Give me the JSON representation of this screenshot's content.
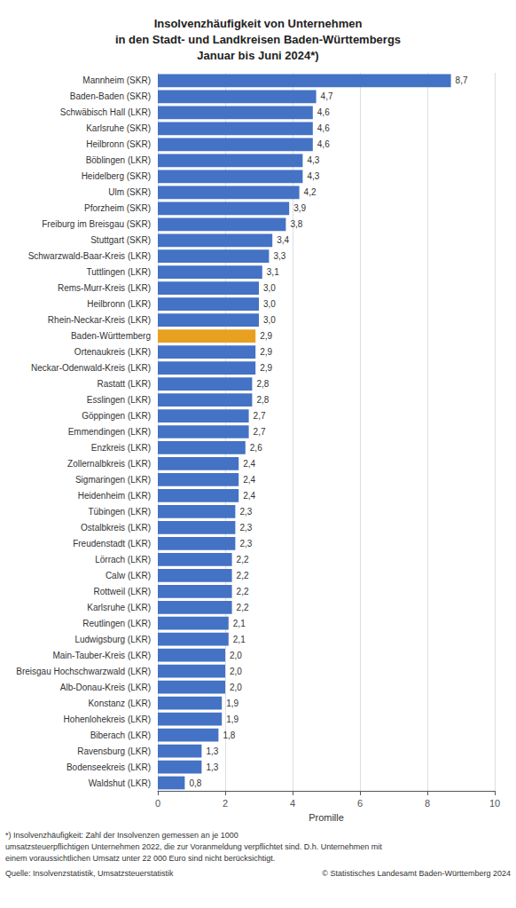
{
  "chart_data": {
    "type": "bar",
    "orientation": "horizontal",
    "title": "Insolvenzhäufigkeit von Unternehmen\nin den Stadt- und Landkreisen Baden-Württembergs\nJanuar bis Juni 2024*)",
    "categories": [
      "Waldshut (LKR)",
      "Bodenseekreis (LKR)",
      "Ravensburg (LKR)",
      "Biberach (LKR)",
      "Hohenlohekreis (LKR)",
      "Konstanz (LKR)",
      "Alb-Donau-Kreis (LKR)",
      "Breisgau Hochschwarzwald (LKR)",
      "Main-Tauber-Kreis (LKR)",
      "Ludwigsburg (LKR)",
      "Reutlingen (LKR)",
      "Karlsruhe (LKR)",
      "Rottweil (LKR)",
      "Calw (LKR)",
      "Lörrach (LKR)",
      "Freudenstadt (LKR)",
      "Ostalbkreis (LKR)",
      "Tübingen (LKR)",
      "Heidenheim (LKR)",
      "Sigmaringen (LKR)",
      "Zollernalbkreis (LKR)",
      "Enzkreis (LKR)",
      "Emmendingen (LKR)",
      "Göppingen (LKR)",
      "Esslingen (LKR)",
      "Rastatt (LKR)",
      "Neckar-Odenwald-Kreis (LKR)",
      "Ortenaukreis (LKR)",
      "Baden-Württemberg",
      "Rhein-Neckar-Kreis (LKR)",
      "Heilbronn (LKR)",
      "Rems-Murr-Kreis (LKR)",
      "Tuttlingen (LKR)",
      "Schwarzwald-Baar-Kreis (LKR)",
      "Stuttgart (SKR)",
      "Freiburg im Breisgau (SKR)",
      "Pforzheim (SKR)",
      "Ulm (SKR)",
      "Heidelberg (SKR)",
      "Böblingen (LKR)",
      "Heilbronn (SKR)",
      "Karlsruhe (SKR)",
      "Schwäbisch Hall (LKR)",
      "Baden-Baden (SKR)",
      "Mannheim (SKR)"
    ],
    "values": [
      0.8,
      1.3,
      1.3,
      1.8,
      1.9,
      1.9,
      2.0,
      2.0,
      2.0,
      2.1,
      2.1,
      2.2,
      2.2,
      2.2,
      2.2,
      2.3,
      2.3,
      2.3,
      2.4,
      2.4,
      2.4,
      2.6,
      2.7,
      2.7,
      2.8,
      2.8,
      2.9,
      2.9,
      2.9,
      3.0,
      3.0,
      3.0,
      3.1,
      3.3,
      3.4,
      3.8,
      3.9,
      4.2,
      4.3,
      4.3,
      4.6,
      4.6,
      4.6,
      4.7,
      8.7
    ],
    "value_labels": [
      "0,8",
      "1,3",
      "1,3",
      "1,8",
      "1,9",
      "1,9",
      "2,0",
      "2,0",
      "2,0",
      "2,1",
      "2,1",
      "2,2",
      "2,2",
      "2,2",
      "2,2",
      "2,3",
      "2,3",
      "2,3",
      "2,4",
      "2,4",
      "2,4",
      "2,6",
      "2,7",
      "2,7",
      "2,8",
      "2,8",
      "2,9",
      "2,9",
      "2,9",
      "3,0",
      "3,0",
      "3,0",
      "3,1",
      "3,3",
      "3,4",
      "3,8",
      "3,9",
      "4,2",
      "4,3",
      "4,3",
      "4,6",
      "4,6",
      "4,6",
      "4,7",
      "8,7"
    ],
    "data_labels": true,
    "colors": [
      "#4472C4",
      "#4472C4",
      "#4472C4",
      "#4472C4",
      "#4472C4",
      "#4472C4",
      "#4472C4",
      "#4472C4",
      "#4472C4",
      "#4472C4",
      "#4472C4",
      "#4472C4",
      "#4472C4",
      "#4472C4",
      "#4472C4",
      "#4472C4",
      "#4472C4",
      "#4472C4",
      "#4472C4",
      "#4472C4",
      "#4472C4",
      "#4472C4",
      "#4472C4",
      "#4472C4",
      "#4472C4",
      "#4472C4",
      "#4472C4",
      "#4472C4",
      "#E8A020",
      "#4472C4",
      "#4472C4",
      "#4472C4",
      "#4472C4",
      "#4472C4",
      "#4472C4",
      "#4472C4",
      "#4472C4",
      "#4472C4",
      "#4472C4",
      "#4472C4",
      "#4472C4",
      "#4472C4",
      "#4472C4",
      "#4472C4",
      "#4472C4"
    ],
    "xlabel": "Promille",
    "xlim": [
      0,
      10
    ],
    "xticks": [
      0,
      2,
      4,
      6,
      8,
      10
    ],
    "grid": true,
    "annotations": [
      "*) Insolvenzhäufigkeit: Zahl der Insolvenzen gemessen an je 1000",
      "umsatzsteuerpflichtigen Unternehmen 2022, die zur Voranmeldung verpflichtet sind. D.h. Unternehmen mit",
      "einem voraussichtlichen Umsatz unter 22 000 Euro sind nicht berücksichtigt.",
      "Quelle: Insolvenzstatistik, Umsatzsteuerstatistik",
      "© Statistisches Landesamt Baden-Württemberg 2024"
    ]
  }
}
